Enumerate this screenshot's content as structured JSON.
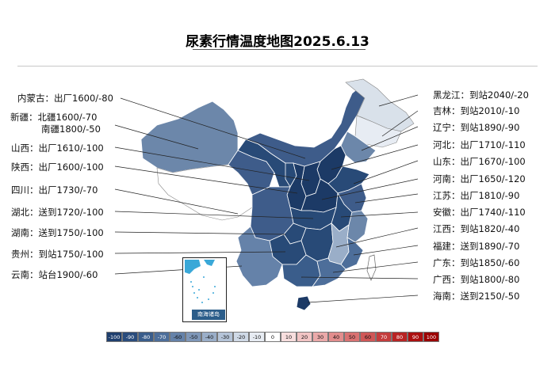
{
  "title": "尿素行情温度地图2025.6.13",
  "inset_caption": "南海诸岛",
  "colors": {
    "neutral": "#ffffff",
    "light": "#d9e1ea",
    "mid": "#8a9fbd",
    "mid_dark": "#6c87aa",
    "dark": "#3e5c8a",
    "darker": "#284a77",
    "darkest": "#1c3a66",
    "border": "#ffffff"
  },
  "labels_left": [
    {
      "id": "neimenggu",
      "text": "内蒙古：出厂1600/-80"
    },
    {
      "id": "xinjiang-1",
      "text": "新疆：北疆1600/-70"
    },
    {
      "id": "xinjiang-2",
      "text": "南疆1800/-50"
    },
    {
      "id": "shanxi",
      "text": "山西：出厂1610/-100"
    },
    {
      "id": "shaanxi",
      "text": "陕西：出厂1600/-100"
    },
    {
      "id": "sichuan",
      "text": "四川：出厂1730/-70"
    },
    {
      "id": "hubei",
      "text": "湖北：送到1720/-100"
    },
    {
      "id": "hunan",
      "text": "湖南：送到1750/-100"
    },
    {
      "id": "guizhou",
      "text": "贵州：到站1750/-100"
    },
    {
      "id": "yunnan",
      "text": "云南：站台1900/-60"
    }
  ],
  "labels_right": [
    {
      "id": "heilongjiang",
      "text": "黑龙江：到站2040/-20"
    },
    {
      "id": "jilin",
      "text": "吉林：到站2010/-10"
    },
    {
      "id": "liaoning",
      "text": "辽宁：到站1890/-90"
    },
    {
      "id": "hebei",
      "text": "河北：出厂1710/-110"
    },
    {
      "id": "shandong",
      "text": "山东：出厂1670/-100"
    },
    {
      "id": "henan",
      "text": "河南：出厂1650/-120"
    },
    {
      "id": "jiangsu",
      "text": "江苏：出厂1810/-90"
    },
    {
      "id": "anhui",
      "text": "安徽：出厂1740/-110"
    },
    {
      "id": "jiangxi",
      "text": "江西：到站1820/-40"
    },
    {
      "id": "fujian",
      "text": "福建：送到1890/-70"
    },
    {
      "id": "guangdong",
      "text": "广东：到站1850/-60"
    },
    {
      "id": "guangxi",
      "text": "广西：到站1800/-80"
    },
    {
      "id": "hainan",
      "text": "海南：送到2150/-50"
    }
  ],
  "legend": [
    {
      "label": "-100",
      "color": "#1f3f6e"
    },
    {
      "label": "-90",
      "color": "#2a4c7c"
    },
    {
      "label": "-80",
      "color": "#3a5d8b"
    },
    {
      "label": "-70",
      "color": "#4d6e9a"
    },
    {
      "label": "-60",
      "color": "#6582a9"
    },
    {
      "label": "-50",
      "color": "#7f97b8"
    },
    {
      "label": "-40",
      "color": "#9aaec8"
    },
    {
      "label": "-30",
      "color": "#b5c4d8"
    },
    {
      "label": "-20",
      "color": "#cfd9e6"
    },
    {
      "label": "-10",
      "color": "#e7ecf3"
    },
    {
      "label": "0",
      "color": "#ffffff"
    },
    {
      "label": "10",
      "color": "#f8dede"
    },
    {
      "label": "20",
      "color": "#f2c4c4"
    },
    {
      "label": "30",
      "color": "#eaa9a9"
    },
    {
      "label": "40",
      "color": "#e28d8d"
    },
    {
      "label": "50",
      "color": "#d97272"
    },
    {
      "label": "60",
      "color": "#cf5757"
    },
    {
      "label": "70",
      "color": "#c43c3c"
    },
    {
      "label": "80",
      "color": "#b82424"
    },
    {
      "label": "90",
      "color": "#ab0f0f"
    },
    {
      "label": "100",
      "color": "#9a0000"
    }
  ]
}
